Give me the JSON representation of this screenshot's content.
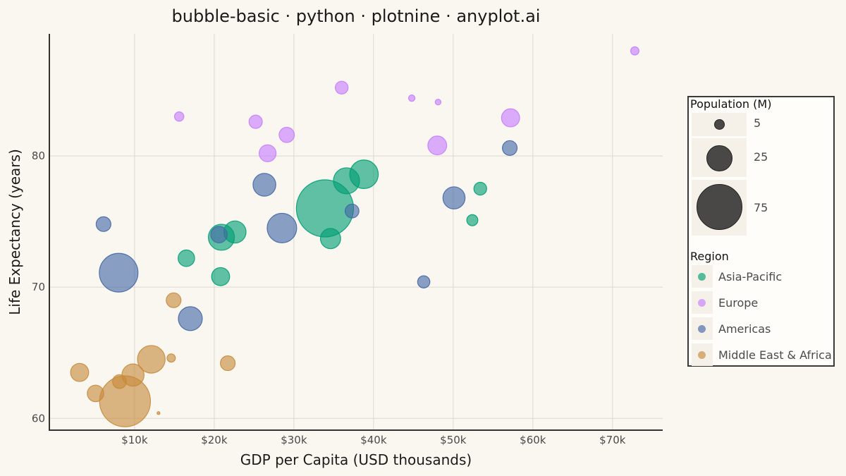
{
  "title": "bubble-basic · python · plotnine · anyplot.ai",
  "chart_data": {
    "type": "scatter",
    "variant": "bubble",
    "xlabel": "GDP per Capita (USD thousands)",
    "ylabel": "Life Expectancy (years)",
    "xlim": [
      -0.7,
      76.3
    ],
    "ylim": [
      59.1,
      89.3
    ],
    "x_ticks": [
      10,
      20,
      30,
      40,
      50,
      60,
      70
    ],
    "x_tick_labels": [
      "$10k",
      "$20k",
      "$30k",
      "$40k",
      "$50k",
      "$60k",
      "$70k"
    ],
    "y_ticks": [
      60,
      70,
      80
    ],
    "y_tick_labels": [
      "60",
      "70",
      "80"
    ],
    "grid": true,
    "legend_position": "right",
    "size_legend": {
      "title": "Population (M)",
      "values": [
        5,
        25,
        75
      ],
      "labels": [
        "5",
        "25",
        "75"
      ]
    },
    "color_legend": {
      "title": "Region",
      "entries": [
        {
          "name": "Asia-Pacific",
          "color": "#009E73"
        },
        {
          "name": "Europe",
          "color": "#C77CFF"
        },
        {
          "name": "Americas",
          "color": "#4467A6"
        },
        {
          "name": "Middle East & Africa",
          "color": "#C68A3A"
        }
      ]
    },
    "series": [
      {
        "name": "Asia-Pacific",
        "color": "#009E73",
        "points": [
          {
            "x": 33.9,
            "y": 76.0,
            "size": 120
          },
          {
            "x": 38.8,
            "y": 78.6,
            "size": 30
          },
          {
            "x": 36.6,
            "y": 78.1,
            "size": 25
          },
          {
            "x": 20.9,
            "y": 73.8,
            "size": 25
          },
          {
            "x": 22.6,
            "y": 74.2,
            "size": 18
          },
          {
            "x": 34.6,
            "y": 73.7,
            "size": 15
          },
          {
            "x": 20.8,
            "y": 70.8,
            "size": 12
          },
          {
            "x": 16.5,
            "y": 72.2,
            "size": 10
          },
          {
            "x": 53.4,
            "y": 77.5,
            "size": 6
          },
          {
            "x": 52.4,
            "y": 75.1,
            "size": 4.5
          }
        ]
      },
      {
        "name": "Europe",
        "color": "#C77CFF",
        "points": [
          {
            "x": 72.8,
            "y": 88.0,
            "size": 2.5
          },
          {
            "x": 36.0,
            "y": 85.2,
            "size": 6
          },
          {
            "x": 44.8,
            "y": 84.4,
            "size": 1.5
          },
          {
            "x": 48.1,
            "y": 84.1,
            "size": 1.2
          },
          {
            "x": 15.6,
            "y": 83.0,
            "size": 3.2
          },
          {
            "x": 57.2,
            "y": 82.9,
            "size": 12
          },
          {
            "x": 25.2,
            "y": 82.6,
            "size": 6.5
          },
          {
            "x": 29.1,
            "y": 81.6,
            "size": 8.5
          },
          {
            "x": 48.0,
            "y": 80.8,
            "size": 13
          },
          {
            "x": 26.7,
            "y": 80.2,
            "size": 10.5
          }
        ]
      },
      {
        "name": "Americas",
        "color": "#4467A6",
        "points": [
          {
            "x": 8.0,
            "y": 71.1,
            "size": 55
          },
          {
            "x": 28.5,
            "y": 74.5,
            "size": 32
          },
          {
            "x": 17.0,
            "y": 67.6,
            "size": 21
          },
          {
            "x": 26.3,
            "y": 77.8,
            "size": 19
          },
          {
            "x": 50.1,
            "y": 76.8,
            "size": 18
          },
          {
            "x": 20.6,
            "y": 74.0,
            "size": 10
          },
          {
            "x": 6.1,
            "y": 74.8,
            "size": 8
          },
          {
            "x": 57.1,
            "y": 80.6,
            "size": 8
          },
          {
            "x": 37.3,
            "y": 75.8,
            "size": 7
          },
          {
            "x": 46.3,
            "y": 70.4,
            "size": 5.5
          }
        ]
      },
      {
        "name": "Middle East & Africa",
        "color": "#C68A3A",
        "points": [
          {
            "x": 8.8,
            "y": 61.3,
            "size": 95
          },
          {
            "x": 12.1,
            "y": 64.5,
            "size": 28
          },
          {
            "x": 9.8,
            "y": 63.3,
            "size": 18
          },
          {
            "x": 3.1,
            "y": 63.5,
            "size": 12
          },
          {
            "x": 5.1,
            "y": 61.9,
            "size": 10
          },
          {
            "x": 21.7,
            "y": 64.2,
            "size": 8
          },
          {
            "x": 14.9,
            "y": 69.0,
            "size": 8
          },
          {
            "x": 8.1,
            "y": 62.8,
            "size": 7
          },
          {
            "x": 14.6,
            "y": 64.6,
            "size": 2.5
          },
          {
            "x": 13.0,
            "y": 60.4,
            "size": 0.3
          }
        ]
      }
    ]
  }
}
